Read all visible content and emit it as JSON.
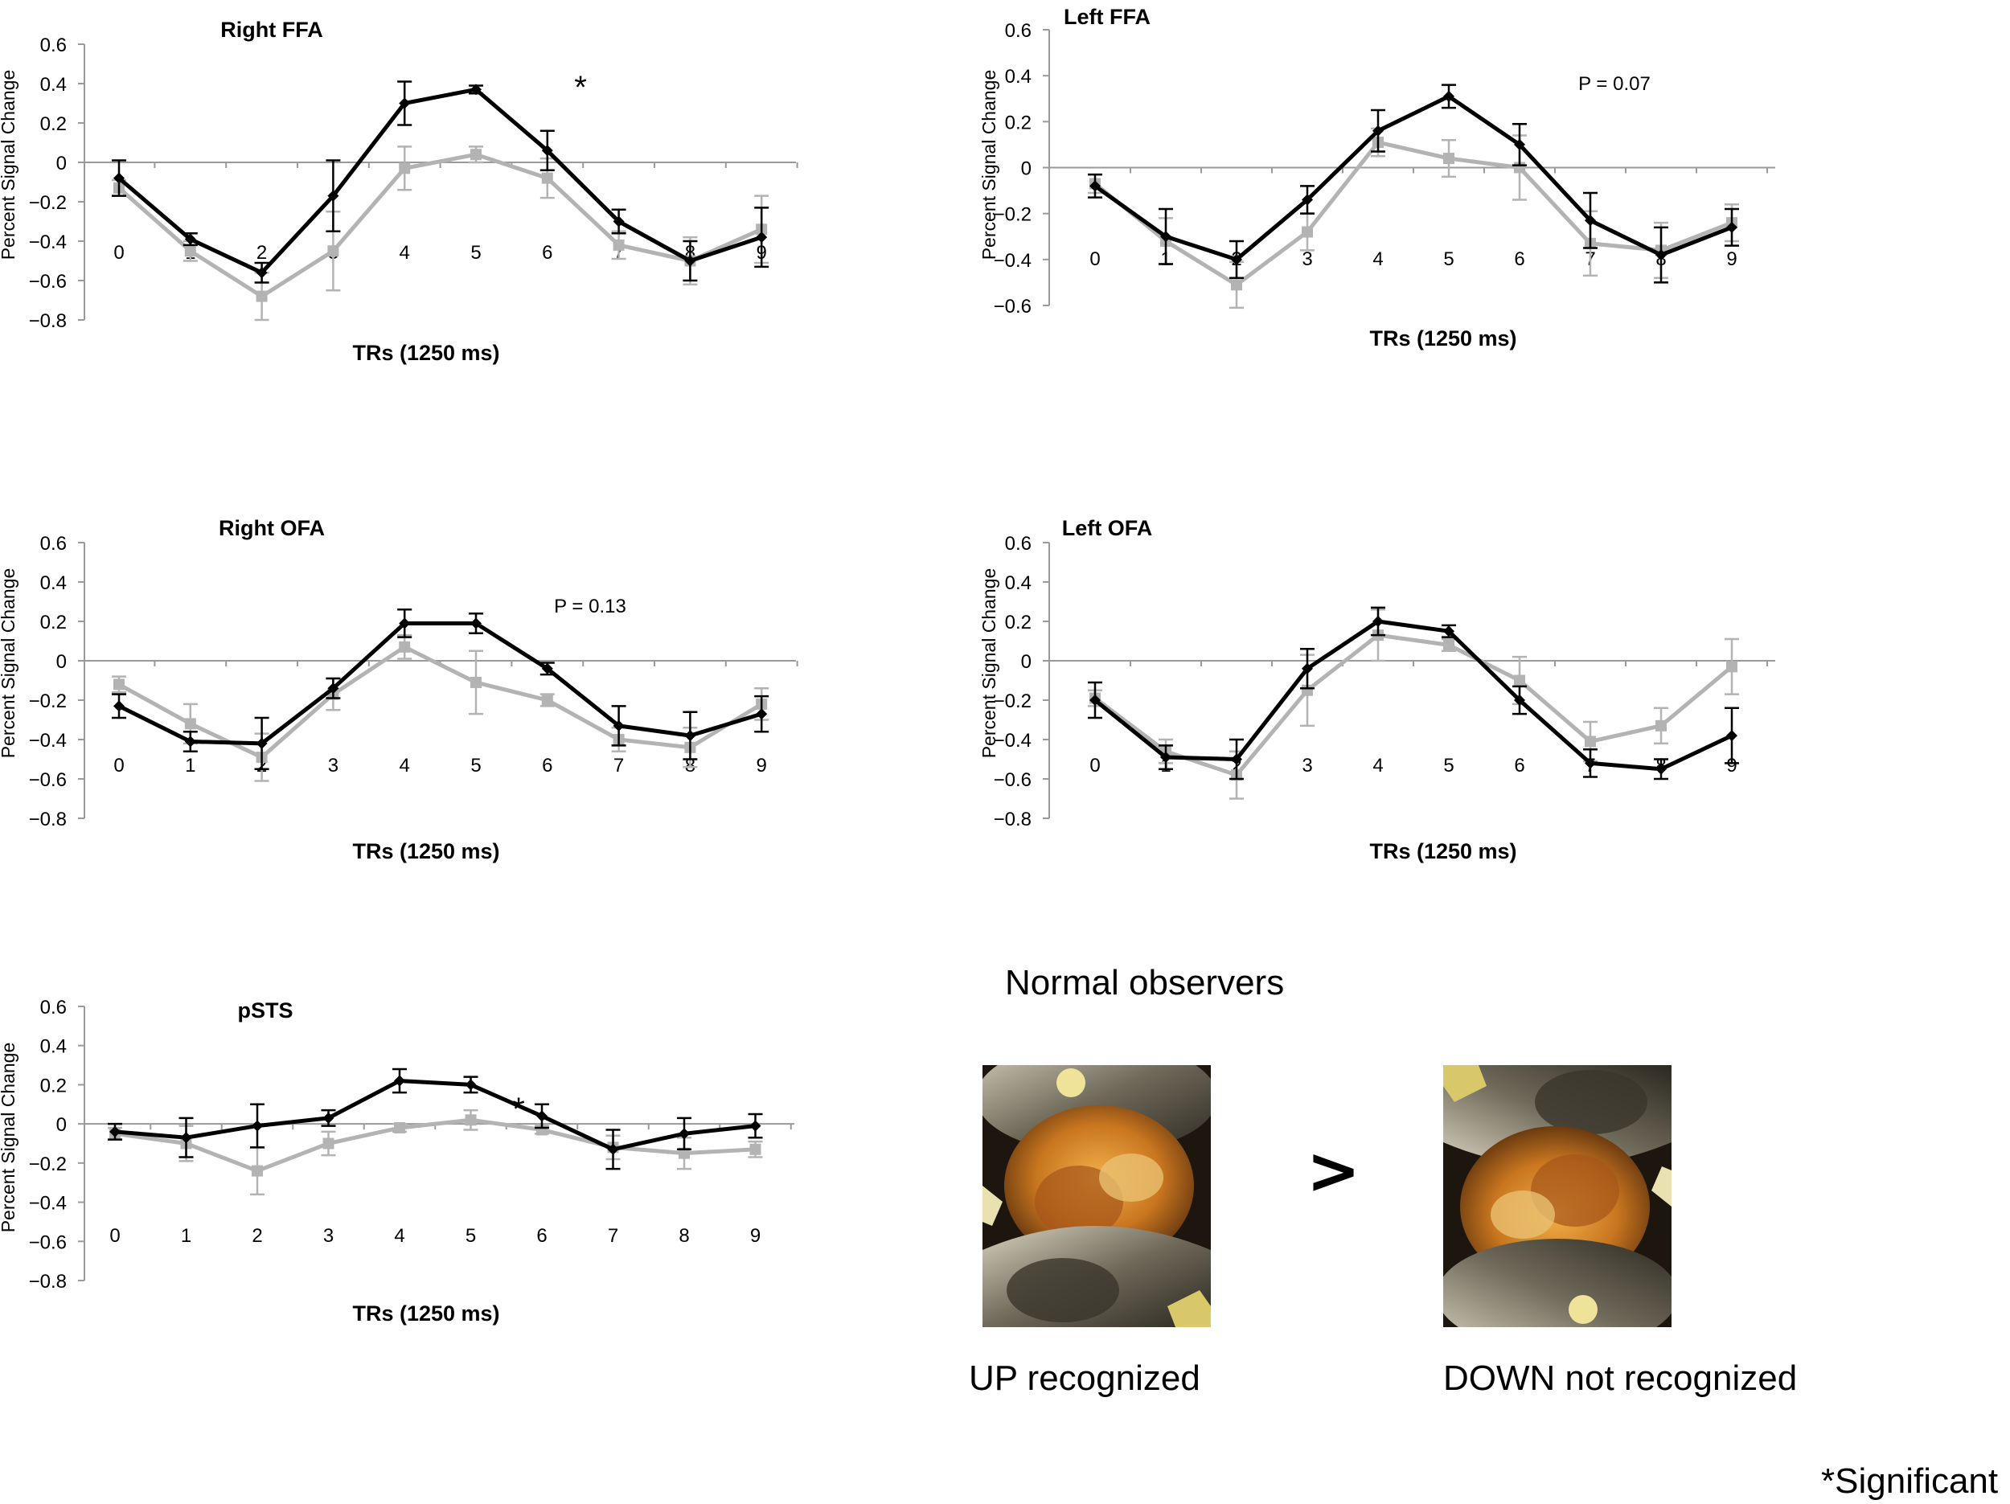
{
  "chart_data": [
    {
      "type": "line",
      "title": "Right FFA",
      "xlabel": "TRs (1250 ms)",
      "ylabel": "Percent Signal Change",
      "x": [
        0,
        1,
        2,
        3,
        4,
        5,
        6,
        7,
        8,
        9
      ],
      "ylim": [
        -0.8,
        0.6
      ],
      "yticks": [
        "0.6",
        "0.4",
        "0.2",
        "0",
        "−0.2",
        "−0.4",
        "−0.6",
        "−0.8"
      ],
      "annotation": "*",
      "series": [
        {
          "color": "#000000",
          "values": [
            -0.08,
            -0.39,
            -0.56,
            -0.17,
            0.3,
            0.37,
            0.06,
            -0.3,
            -0.5,
            -0.38
          ],
          "errors": [
            0.09,
            0.03,
            0.05,
            0.18,
            0.11,
            0.02,
            0.1,
            0.06,
            0.1,
            0.15
          ]
        },
        {
          "color": "#b3b3b3",
          "values": [
            -0.13,
            -0.45,
            -0.68,
            -0.45,
            -0.03,
            0.04,
            -0.08,
            -0.42,
            -0.5,
            -0.34
          ],
          "errors": [
            0.04,
            0.05,
            0.12,
            0.2,
            0.11,
            0.04,
            0.1,
            0.07,
            0.12,
            0.17
          ]
        }
      ]
    },
    {
      "type": "line",
      "title": "Left FFA",
      "xlabel": "TRs (1250 ms)",
      "ylabel": "Percent Signal Change",
      "x": [
        0,
        1,
        2,
        3,
        4,
        5,
        6,
        7,
        8,
        9
      ],
      "ylim": [
        -0.6,
        0.6
      ],
      "yticks": [
        "0.6",
        "0.4",
        "0.2",
        "0",
        "−0.2",
        "−0.4",
        "−0.6"
      ],
      "annotation": "P = 0.07",
      "series": [
        {
          "color": "#000000",
          "values": [
            -0.08,
            -0.3,
            -0.4,
            -0.14,
            0.16,
            0.31,
            0.1,
            -0.23,
            -0.38,
            -0.26
          ],
          "errors": [
            0.05,
            0.12,
            0.08,
            0.06,
            0.09,
            0.05,
            0.09,
            0.12,
            0.12,
            0.08
          ]
        },
        {
          "color": "#b3b3b3",
          "values": [
            -0.07,
            -0.32,
            -0.51,
            -0.28,
            0.11,
            0.04,
            0.0,
            -0.33,
            -0.36,
            -0.24
          ],
          "errors": [
            0.04,
            0.1,
            0.1,
            0.08,
            0.06,
            0.08,
            0.14,
            0.14,
            0.12,
            0.08
          ]
        }
      ]
    },
    {
      "type": "line",
      "title": "Right OFA",
      "xlabel": "TRs (1250 ms)",
      "ylabel": "Percent Signal Change",
      "x": [
        0,
        1,
        2,
        3,
        4,
        5,
        6,
        7,
        8,
        9
      ],
      "ylim": [
        -0.8,
        0.6
      ],
      "yticks": [
        "0.6",
        "0.4",
        "0.2",
        "0",
        "−0.2",
        "−0.4",
        "−0.6",
        "−0.8"
      ],
      "annotation": "P = 0.13",
      "series": [
        {
          "color": "#000000",
          "values": [
            -0.23,
            -0.41,
            -0.42,
            -0.14,
            0.19,
            0.19,
            -0.04,
            -0.33,
            -0.38,
            -0.27
          ],
          "errors": [
            0.06,
            0.05,
            0.13,
            0.05,
            0.07,
            0.05,
            0.03,
            0.1,
            0.12,
            0.09
          ]
        },
        {
          "color": "#b3b3b3",
          "values": [
            -0.12,
            -0.32,
            -0.49,
            -0.17,
            0.07,
            -0.11,
            -0.2,
            -0.4,
            -0.44,
            -0.22
          ],
          "errors": [
            0.04,
            0.1,
            0.12,
            0.08,
            0.06,
            0.16,
            0.03,
            0.06,
            0.1,
            0.08
          ]
        }
      ]
    },
    {
      "type": "line",
      "title": "Left OFA",
      "xlabel": "TRs (1250 ms)",
      "ylabel": "Percent Signal Change",
      "x": [
        0,
        1,
        2,
        3,
        4,
        5,
        6,
        7,
        8,
        9
      ],
      "ylim": [
        -0.8,
        0.6
      ],
      "yticks": [
        "0.6",
        "0.4",
        "0.2",
        "0",
        "−0.2",
        "−0.4",
        "−0.6",
        "−0.8"
      ],
      "series": [
        {
          "color": "#000000",
          "values": [
            -0.2,
            -0.49,
            -0.5,
            -0.04,
            0.2,
            0.15,
            -0.2,
            -0.52,
            -0.55,
            -0.38
          ],
          "errors": [
            0.09,
            0.06,
            0.1,
            0.1,
            0.07,
            0.03,
            0.07,
            0.07,
            0.05,
            0.14
          ]
        },
        {
          "color": "#b3b3b3",
          "values": [
            -0.19,
            -0.46,
            -0.58,
            -0.15,
            0.13,
            0.08,
            -0.1,
            -0.41,
            -0.33,
            -0.03
          ],
          "errors": [
            0.04,
            0.06,
            0.12,
            0.18,
            0.13,
            0.03,
            0.12,
            0.1,
            0.09,
            0.14
          ]
        }
      ]
    },
    {
      "type": "line",
      "title": "pSTS",
      "xlabel": "TRs (1250 ms)",
      "ylabel": "Percent Signal Change",
      "x": [
        0,
        1,
        2,
        3,
        4,
        5,
        6,
        7,
        8,
        9
      ],
      "ylim": [
        -0.8,
        0.6
      ],
      "yticks": [
        "0.6",
        "0.4",
        "0.2",
        "0",
        "−0.2",
        "−0.4",
        "−0.6",
        "−0.8"
      ],
      "annotation": "*",
      "series": [
        {
          "color": "#000000",
          "values": [
            -0.04,
            -0.07,
            -0.01,
            0.03,
            0.22,
            0.2,
            0.04,
            -0.13,
            -0.05,
            -0.01
          ],
          "errors": [
            0.04,
            0.1,
            0.11,
            0.04,
            0.06,
            0.04,
            0.06,
            0.1,
            0.08,
            0.06
          ]
        },
        {
          "color": "#b3b3b3",
          "values": [
            -0.05,
            -0.1,
            -0.24,
            -0.1,
            -0.02,
            0.02,
            -0.03,
            -0.12,
            -0.15,
            -0.13
          ],
          "errors": [
            0.03,
            0.09,
            0.12,
            0.06,
            0.02,
            0.05,
            0.02,
            0.06,
            0.08,
            0.04
          ]
        }
      ]
    }
  ],
  "panel": {
    "heading": "Normal observers",
    "comparator": ">",
    "left_caption": "UP recognized",
    "right_caption": "DOWN not recognized",
    "footnote": "*Significant"
  }
}
